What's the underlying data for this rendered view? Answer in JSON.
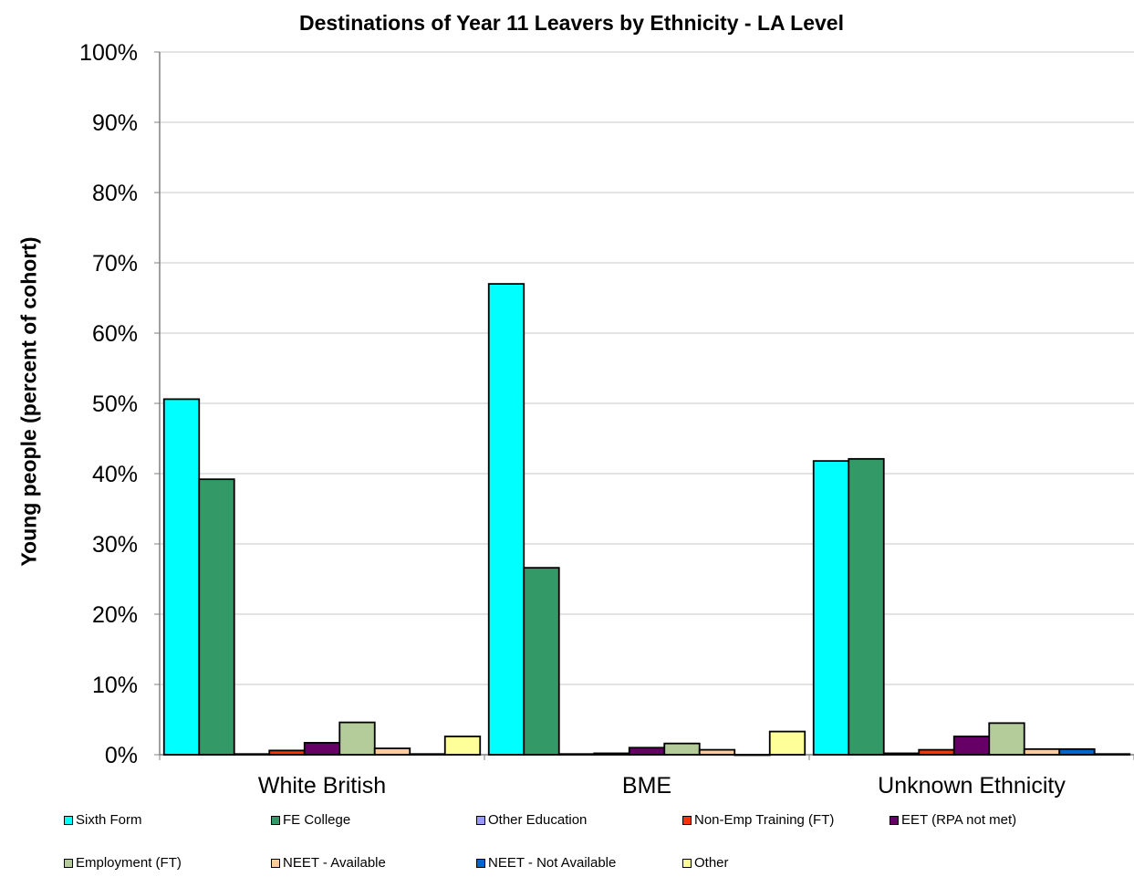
{
  "chart_data": {
    "type": "bar",
    "title": "Destinations of Year 11 Leavers by Ethnicity - LA Level",
    "ylabel": "Young people (percent of cohort)",
    "xlabel": "",
    "ylim": [
      0,
      100
    ],
    "yticks": [
      "0%",
      "10%",
      "20%",
      "30%",
      "40%",
      "50%",
      "60%",
      "70%",
      "80%",
      "90%",
      "100%"
    ],
    "grid": true,
    "legend_position": "bottom",
    "categories": [
      "White British",
      "BME",
      "Unknown Ethnicity"
    ],
    "series": [
      {
        "name": "Sixth Form",
        "color": "#00FFFF",
        "values": [
          50.6,
          67.0,
          41.8
        ]
      },
      {
        "name": "FE College",
        "color": "#339966",
        "values": [
          39.2,
          26.6,
          42.1
        ]
      },
      {
        "name": "Other Education",
        "color": "#9999FF",
        "values": [
          0.1,
          0.1,
          0.2
        ]
      },
      {
        "name": "Non-Emp Training (FT)",
        "color": "#FF3300",
        "values": [
          0.6,
          0.2,
          0.7
        ]
      },
      {
        "name": "EET (RPA not met)",
        "color": "#660066",
        "values": [
          1.7,
          1.0,
          2.6
        ]
      },
      {
        "name": "Employment (FT)",
        "color": "#B3CC99",
        "values": [
          4.6,
          1.6,
          4.5
        ]
      },
      {
        "name": "NEET - Available",
        "color": "#FFCC99",
        "values": [
          0.9,
          0.7,
          0.8
        ]
      },
      {
        "name": "NEET - Not Available",
        "color": "#0066CC",
        "values": [
          0.1,
          0.0,
          0.8
        ]
      },
      {
        "name": "Other",
        "color": "#FFFF99",
        "values": [
          2.6,
          3.3,
          0.1
        ]
      }
    ]
  }
}
